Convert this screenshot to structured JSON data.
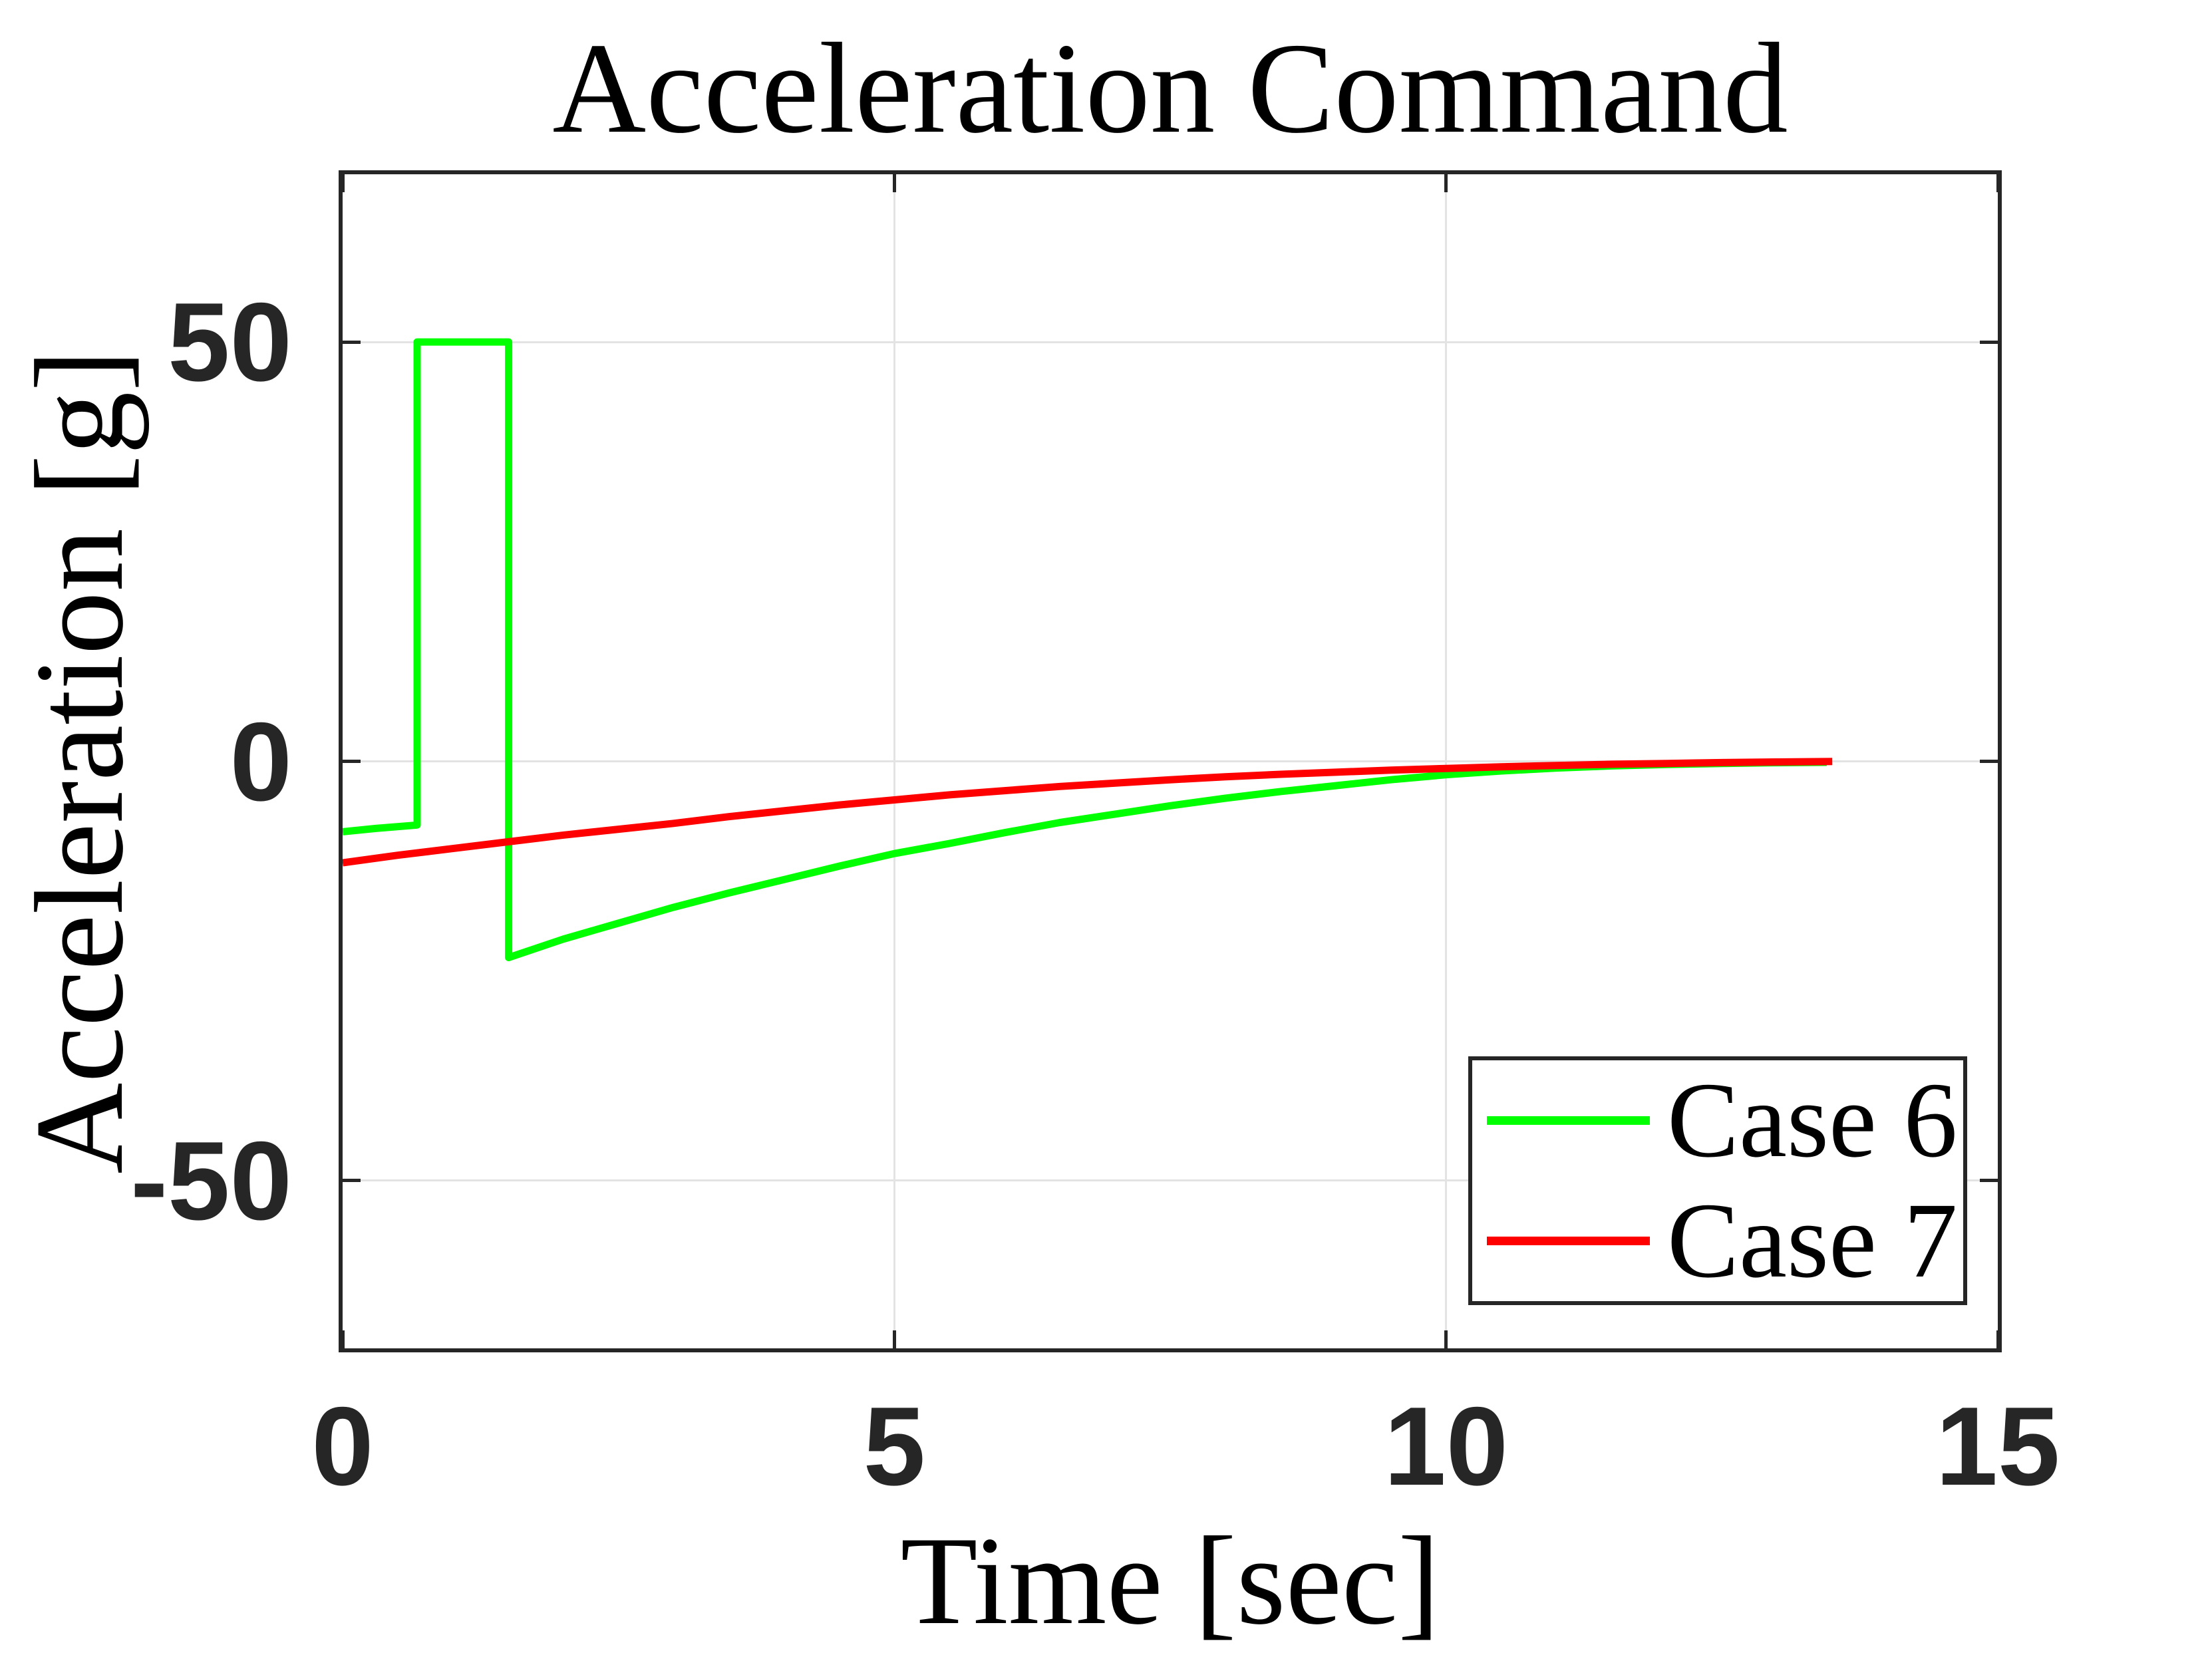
{
  "chart_data": {
    "type": "line",
    "title": "Acceleration Command",
    "xlabel": "Time [sec]",
    "ylabel": "Acceleration [g]",
    "xlim": [
      0,
      15
    ],
    "ylim": [
      -70,
      70
    ],
    "xticks": [
      0,
      5,
      10,
      15
    ],
    "yticks": [
      -50,
      0,
      50
    ],
    "grid": true,
    "legend_position": "southeast",
    "axis_color": "#262626",
    "grid_color": "#e3e3e3",
    "line_width": 11,
    "series": [
      {
        "name": "Case 6",
        "color": "#00ff00",
        "points": [
          [
            0,
            -8.4
          ],
          [
            0.3,
            -8.0
          ],
          [
            0.675,
            -7.6
          ],
          [
            0.675,
            50
          ],
          [
            1.505,
            50
          ],
          [
            1.505,
            -23.4
          ],
          [
            2,
            -21.2
          ],
          [
            2.5,
            -19.3
          ],
          [
            3,
            -17.4
          ],
          [
            3.5,
            -15.7
          ],
          [
            4,
            -14.1
          ],
          [
            4.5,
            -12.5
          ],
          [
            5,
            -11.0
          ],
          [
            5.5,
            -9.8
          ],
          [
            6,
            -8.5
          ],
          [
            6.5,
            -7.3
          ],
          [
            7,
            -6.3
          ],
          [
            7.5,
            -5.3
          ],
          [
            8,
            -4.4
          ],
          [
            8.5,
            -3.6
          ],
          [
            9,
            -2.9
          ],
          [
            9.5,
            -2.2
          ],
          [
            10,
            -1.6
          ],
          [
            10.5,
            -1.15
          ],
          [
            11,
            -0.8
          ],
          [
            11.5,
            -0.55
          ],
          [
            12,
            -0.38
          ],
          [
            12.5,
            -0.26
          ],
          [
            13,
            -0.17
          ],
          [
            13.45,
            -0.12
          ]
        ]
      },
      {
        "name": "Case 7",
        "color": "#ff0000",
        "points": [
          [
            0,
            -12.1
          ],
          [
            0.5,
            -11.2
          ],
          [
            1,
            -10.4
          ],
          [
            1.5,
            -9.6
          ],
          [
            2,
            -8.8
          ],
          [
            2.5,
            -8.1
          ],
          [
            3,
            -7.4
          ],
          [
            3.5,
            -6.6
          ],
          [
            4,
            -5.9
          ],
          [
            4.5,
            -5.2
          ],
          [
            5,
            -4.6
          ],
          [
            5.5,
            -4.0
          ],
          [
            6,
            -3.5
          ],
          [
            6.5,
            -3.0
          ],
          [
            7,
            -2.6
          ],
          [
            7.5,
            -2.2
          ],
          [
            8,
            -1.85
          ],
          [
            8.5,
            -1.55
          ],
          [
            9,
            -1.3
          ],
          [
            9.5,
            -1.05
          ],
          [
            10,
            -0.85
          ],
          [
            10.5,
            -0.65
          ],
          [
            11,
            -0.5
          ],
          [
            11.5,
            -0.35
          ],
          [
            12,
            -0.25
          ],
          [
            12.5,
            -0.15
          ],
          [
            13,
            -0.08
          ],
          [
            13.5,
            -0.02
          ]
        ]
      }
    ]
  }
}
